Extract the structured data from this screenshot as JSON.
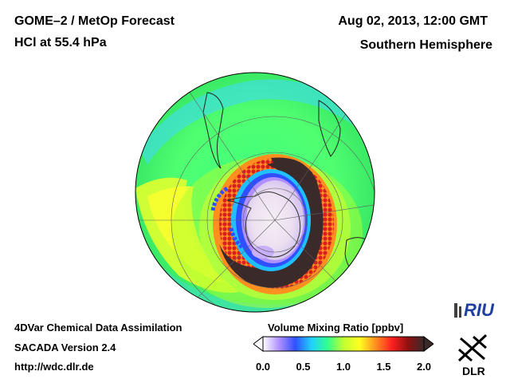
{
  "header": {
    "title_line1": "GOME–2 / MetOp Forecast",
    "title_line2": "HCl at 55.4 hPa",
    "date": "Aug 02, 2013, 12:00 GMT",
    "region": "Southern Hemisphere"
  },
  "footer": {
    "line1": "4DVar Chemical Data Assimilation",
    "line2": "SACADA Version 2.4",
    "line3": "http://wdc.dlr.de"
  },
  "colorbar": {
    "title": "Volume Mixing Ratio [ppbv]",
    "ticks": [
      "0.0",
      "0.5",
      "1.0",
      "1.5",
      "2.0"
    ],
    "tick_values": [
      0.0,
      0.5,
      1.0,
      1.5,
      2.0
    ],
    "range": [
      0.0,
      2.0
    ],
    "colors": [
      "#ffffff",
      "#b090ff",
      "#3050ff",
      "#20d0ff",
      "#30ff90",
      "#c0ff30",
      "#ffff20",
      "#ff9020",
      "#ff2020",
      "#901010",
      "#3a2a2a"
    ]
  },
  "logos": {
    "riu": "RIU",
    "dlr": "DLR"
  },
  "map": {
    "projection": "orthographic-south-pole",
    "icons": [
      "globe-map",
      "riu-logo",
      "dlr-logo"
    ]
  }
}
